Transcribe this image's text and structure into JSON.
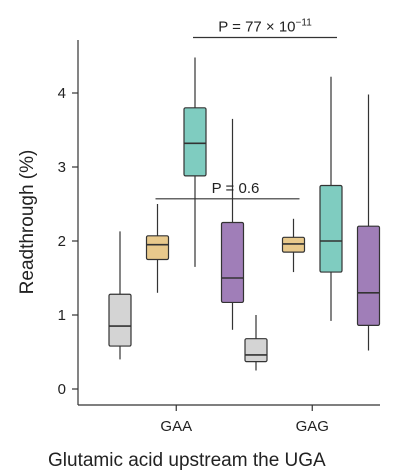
{
  "chart_data": {
    "type": "box",
    "xlabel": "Glutamic acid upstream the UGA",
    "ylabel": "Readthrough (%)",
    "ylim": [
      -0.2,
      4.7
    ],
    "yticks": [
      0,
      1,
      2,
      3,
      4
    ],
    "grid": false,
    "legend": "none",
    "categories": [
      "GAA",
      "GAG"
    ],
    "boxes": [
      {
        "category": "GAA",
        "slot": 0,
        "color": "#d4d4d4",
        "whisker_low": 0.4,
        "q1": 0.58,
        "median": 0.85,
        "q3": 1.28,
        "whisker_high": 2.13
      },
      {
        "category": "GAA",
        "slot": 1,
        "color": "#e8c98c",
        "whisker_low": 1.3,
        "q1": 1.75,
        "median": 1.95,
        "q3": 2.07,
        "whisker_high": 2.5
      },
      {
        "category": "GAA",
        "slot": 2,
        "color": "#7fccc0",
        "whisker_low": 1.65,
        "q1": 2.88,
        "median": 3.32,
        "q3": 3.8,
        "whisker_high": 4.48
      },
      {
        "category": "GAA",
        "slot": 3,
        "color": "#a07eb8",
        "whisker_low": 0.8,
        "q1": 1.17,
        "median": 1.5,
        "q3": 2.25,
        "whisker_high": 3.65
      },
      {
        "category": "GAG",
        "slot": 0,
        "color": "#d4d4d4",
        "whisker_low": 0.25,
        "q1": 0.37,
        "median": 0.46,
        "q3": 0.68,
        "whisker_high": 1.0
      },
      {
        "category": "GAG",
        "slot": 1,
        "color": "#e8c98c",
        "whisker_low": 1.58,
        "q1": 1.85,
        "median": 1.96,
        "q3": 2.05,
        "whisker_high": 2.3
      },
      {
        "category": "GAG",
        "slot": 2,
        "color": "#7fccc0",
        "whisker_low": 0.92,
        "q1": 1.58,
        "median": 2.0,
        "q3": 2.75,
        "whisker_high": 4.22
      },
      {
        "category": "GAG",
        "slot": 3,
        "color": "#a07eb8",
        "whisker_low": 0.52,
        "q1": 0.86,
        "median": 1.3,
        "q3": 2.2,
        "whisker_high": 3.98
      }
    ],
    "annotations": [
      {
        "text_main": "P = 77 × 10",
        "text_sup": "−11",
        "from": {
          "category": "GAA",
          "slot": 2
        },
        "to": {
          "category": "GAG",
          "slot": 2
        },
        "y": 4.75
      },
      {
        "text_main": "P = 0.6",
        "text_sup": "",
        "from": {
          "category": "GAA",
          "slot": 1
        },
        "to": {
          "category": "GAG",
          "slot": 1
        },
        "y": 2.57
      }
    ]
  }
}
